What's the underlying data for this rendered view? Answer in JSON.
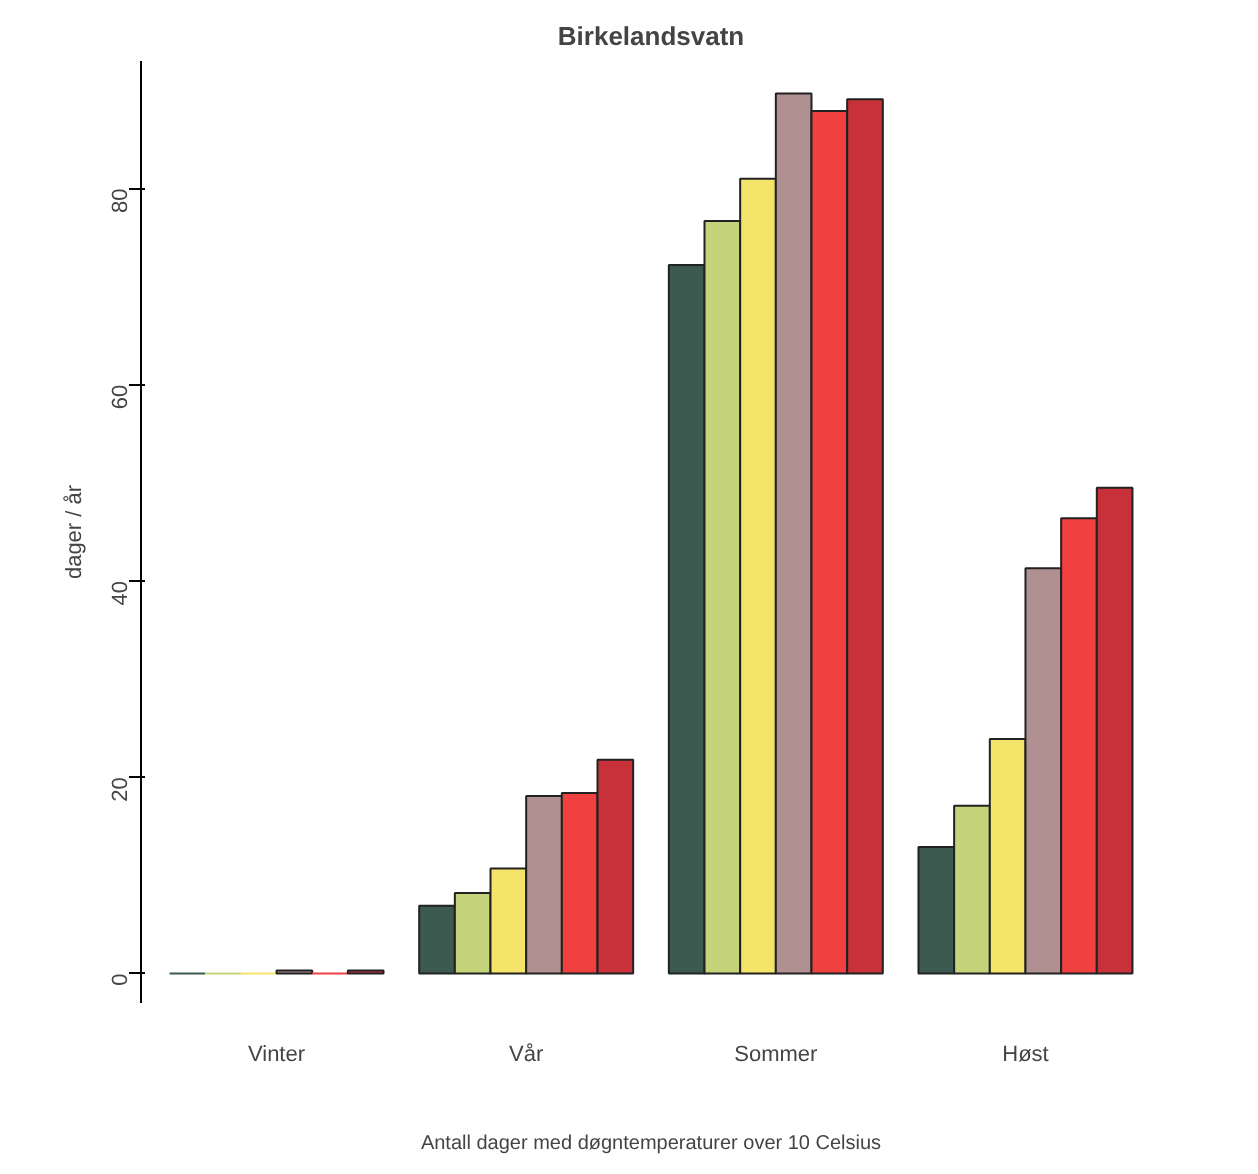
{
  "chart_data": {
    "type": "bar",
    "title": "Birkelandsvatn",
    "ylabel": "dager / år",
    "xlabel": "Antall dager med døgntemperaturer over 10 Celsius",
    "categories": [
      "Vinter",
      "Vår",
      "Sommer",
      "Høst"
    ],
    "series": [
      {
        "color": "#3d5a50",
        "values": [
          0,
          6.9,
          72.2,
          12.9
        ]
      },
      {
        "color": "#c5d47a",
        "values": [
          0,
          8.2,
          76.7,
          17.1
        ]
      },
      {
        "color": "#f5e46a",
        "values": [
          0,
          10.7,
          81.0,
          23.9
        ]
      },
      {
        "color": "#b09090",
        "values": [
          0.3,
          18.1,
          89.7,
          41.3
        ]
      },
      {
        "color": "#f04040",
        "values": [
          0,
          18.4,
          87.9,
          46.4
        ]
      },
      {
        "color": "#c8303a",
        "values": [
          0.3,
          21.8,
          89.1,
          49.5
        ]
      }
    ],
    "ylim": [
      -3,
      93
    ],
    "yticks": [
      0,
      20,
      40,
      60,
      80
    ],
    "grid": false
  }
}
